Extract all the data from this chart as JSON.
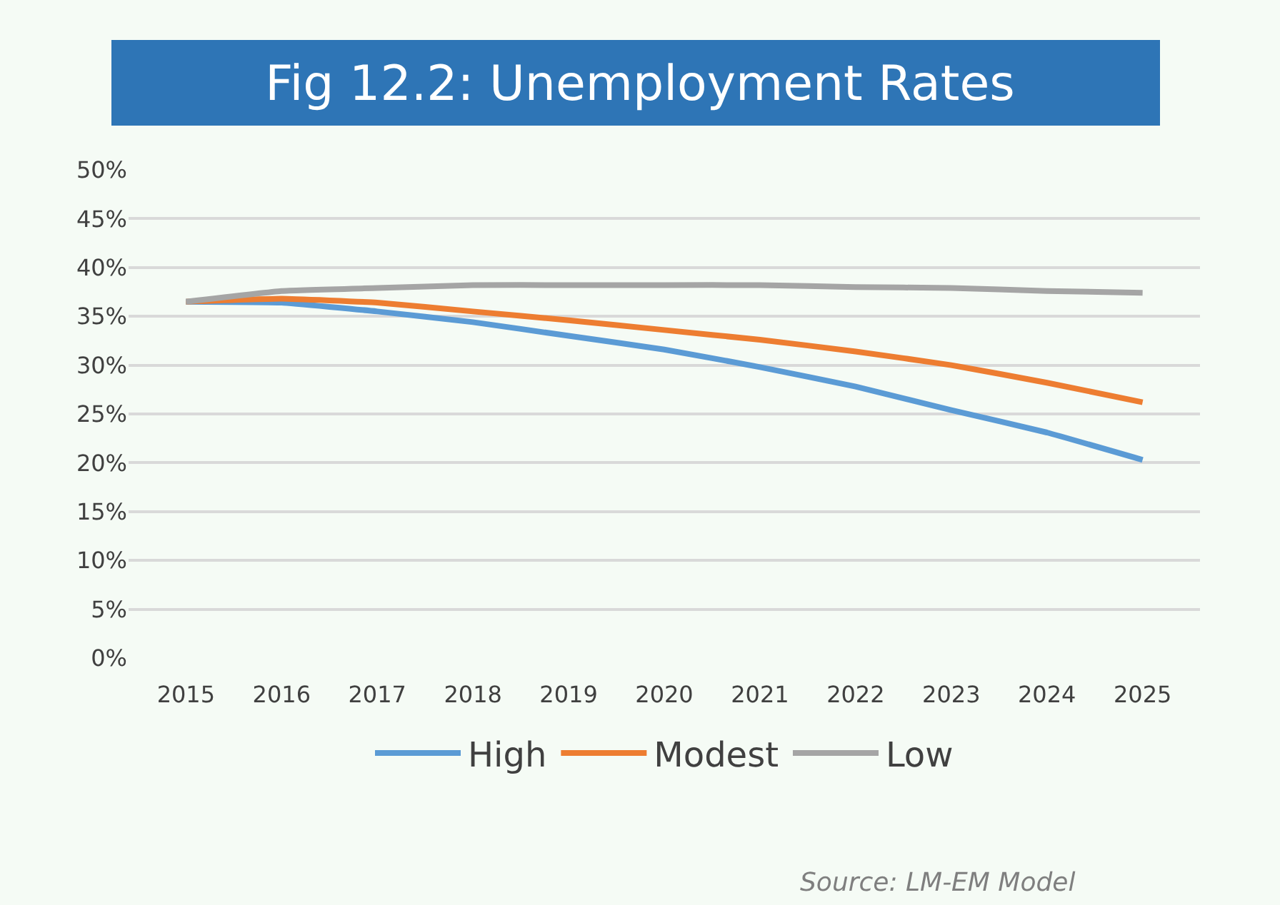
{
  "chart_data": {
    "type": "line",
    "title": "Fig 12.2: Unemployment Rates",
    "categories": [
      "2015",
      "2016",
      "2017",
      "2018",
      "2019",
      "2020",
      "2021",
      "2022",
      "2023",
      "2024",
      "2025"
    ],
    "series": [
      {
        "name": "High",
        "color": "#5b9bd5",
        "values": [
          36.5,
          36.4,
          35.5,
          34.4,
          33.0,
          31.6,
          29.8,
          27.8,
          25.4,
          23.1,
          20.3
        ]
      },
      {
        "name": "Modest",
        "color": "#ed7d31",
        "values": [
          36.5,
          36.8,
          36.4,
          35.5,
          34.6,
          33.6,
          32.6,
          31.4,
          30.0,
          28.2,
          26.2
        ]
      },
      {
        "name": "Low",
        "color": "#a5a5a5",
        "values": [
          36.5,
          37.6,
          37.9,
          38.2,
          38.2,
          38.2,
          38.2,
          38.0,
          37.9,
          37.6,
          37.4
        ]
      }
    ],
    "ylim": [
      0,
      50
    ],
    "yticks": [
      {
        "value": 0,
        "label": "0%"
      },
      {
        "value": 5,
        "label": "5%"
      },
      {
        "value": 10,
        "label": "10%"
      },
      {
        "value": 15,
        "label": "15%"
      },
      {
        "value": 20,
        "label": "20%"
      },
      {
        "value": 25,
        "label": "25%"
      },
      {
        "value": 30,
        "label": "30%"
      },
      {
        "value": 35,
        "label": "35%"
      },
      {
        "value": 40,
        "label": "40%"
      },
      {
        "value": 45,
        "label": "45%"
      },
      {
        "value": 50,
        "label": "50%"
      }
    ],
    "grid": "y",
    "legend": "bottom",
    "marker": "none",
    "line_style": "solid",
    "annotations": [
      "Source: LM-EM Model"
    ]
  }
}
